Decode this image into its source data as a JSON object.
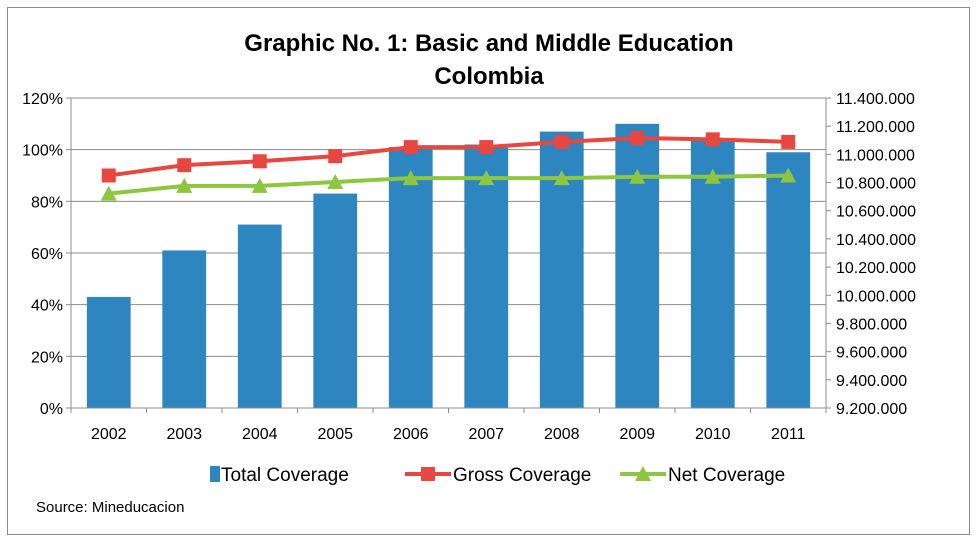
{
  "chart_data": {
    "type": "bar",
    "title": "Graphic No. 1: Basic and Middle Education",
    "subtitle": "Colombia",
    "source": "Source:  Mineducacion",
    "categories": [
      "2002",
      "2003",
      "2004",
      "2005",
      "2006",
      "2007",
      "2008",
      "2009",
      "2010",
      "2011"
    ],
    "series": [
      {
        "name": "Total Coverage",
        "kind": "bar",
        "axis": "left",
        "color": "#2e86c1",
        "values": [
          43,
          61,
          71,
          83,
          101,
          102,
          107,
          110,
          104,
          99
        ]
      },
      {
        "name": "Gross Coverage",
        "kind": "line",
        "marker": "square",
        "axis": "left",
        "color": "#e8473f",
        "values": [
          90,
          94,
          95.5,
          97.5,
          101,
          101,
          103,
          104.5,
          104,
          103
        ]
      },
      {
        "name": "Net Coverage",
        "kind": "line",
        "marker": "triangle",
        "axis": "left",
        "color": "#8dc63f",
        "values": [
          83,
          86,
          86,
          87.5,
          89,
          89,
          89,
          89.5,
          89.5,
          90
        ]
      }
    ],
    "ylim": [
      0,
      120
    ],
    "y_ticks": [
      "0%",
      "20%",
      "40%",
      "60%",
      "80%",
      "100%",
      "120%"
    ],
    "y2lim": [
      9200000,
      11400000
    ],
    "y2_ticks": [
      "9.200.000",
      "9.400.000",
      "9.600.000",
      "9.800.000",
      "10.000.000",
      "10.200.000",
      "10.400.000",
      "10.600.000",
      "10.800.000",
      "11.000.000",
      "11.200.000",
      "11.400.000"
    ],
    "grid": true,
    "legend_position": "bottom"
  }
}
